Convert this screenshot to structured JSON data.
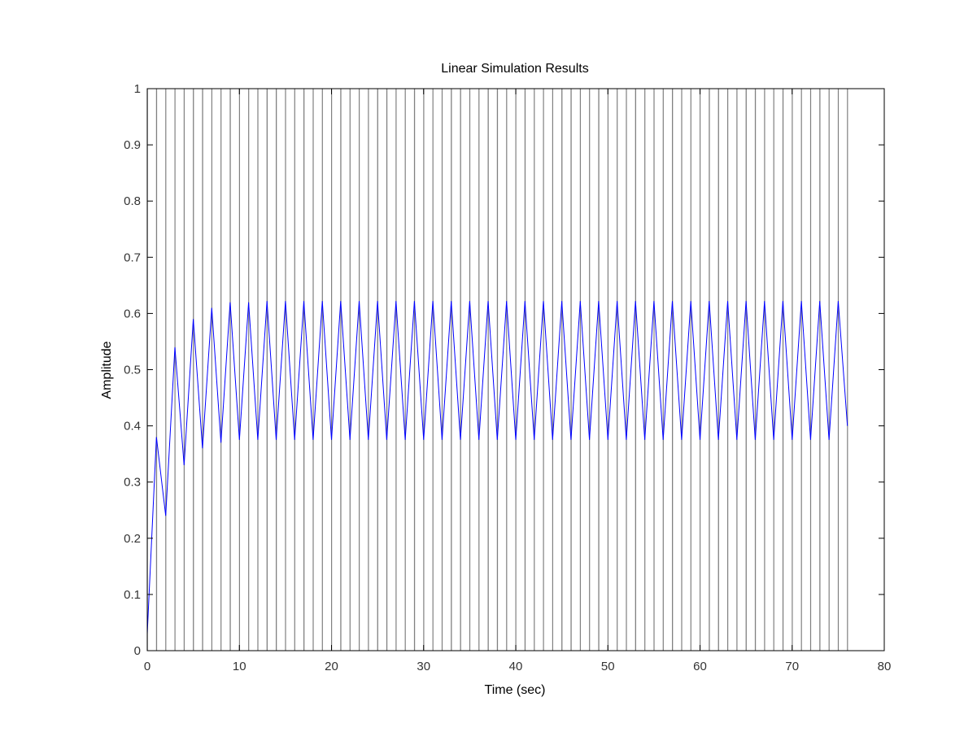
{
  "chart_data": {
    "type": "line",
    "title": "Linear Simulation Results",
    "xlabel": "Time (sec)",
    "ylabel": "Amplitude",
    "xlim": [
      0,
      80
    ],
    "ylim": [
      0,
      1
    ],
    "xticks": [
      "0",
      "10",
      "20",
      "30",
      "40",
      "50",
      "60",
      "70",
      "80"
    ],
    "yticks": [
      "0",
      "0.1",
      "0.2",
      "0.3",
      "0.4",
      "0.5",
      "0.6",
      "0.7",
      "0.8",
      "0.9",
      "1"
    ],
    "grid": false,
    "input_signal": {
      "description_values": "square pulse train, amplitude 0 to 1",
      "period": 1,
      "duty_high": 0.02,
      "t_end": 76,
      "color": "#808080"
    },
    "series": [
      {
        "color": "#0000ff",
        "x": [
          0,
          1,
          2,
          3,
          4,
          5,
          6,
          7,
          8,
          9,
          10,
          11,
          12,
          13,
          14,
          15,
          16,
          17,
          18,
          19,
          20,
          21,
          22,
          23,
          24,
          25,
          26,
          27,
          28,
          29,
          30,
          31,
          32,
          33,
          34,
          35,
          36,
          37,
          38,
          39,
          40,
          41,
          42,
          43,
          44,
          45,
          46,
          47,
          48,
          49,
          50,
          51,
          52,
          53,
          54,
          55,
          56,
          57,
          58,
          59,
          60,
          61,
          62,
          63,
          64,
          65,
          66,
          67,
          68,
          69,
          70,
          71,
          72,
          73,
          74,
          75,
          76
        ],
        "y": [
          0.03,
          0.38,
          0.24,
          0.54,
          0.33,
          0.59,
          0.36,
          0.61,
          0.37,
          0.62,
          0.375,
          0.62,
          0.375,
          0.622,
          0.375,
          0.622,
          0.375,
          0.622,
          0.375,
          0.622,
          0.375,
          0.622,
          0.375,
          0.622,
          0.375,
          0.622,
          0.375,
          0.622,
          0.375,
          0.622,
          0.375,
          0.622,
          0.375,
          0.622,
          0.375,
          0.622,
          0.375,
          0.622,
          0.375,
          0.622,
          0.375,
          0.622,
          0.375,
          0.622,
          0.375,
          0.622,
          0.375,
          0.622,
          0.375,
          0.622,
          0.375,
          0.622,
          0.375,
          0.622,
          0.375,
          0.622,
          0.375,
          0.622,
          0.375,
          0.622,
          0.375,
          0.622,
          0.375,
          0.622,
          0.375,
          0.622,
          0.375,
          0.622,
          0.375,
          0.622,
          0.375,
          0.622,
          0.375,
          0.622,
          0.375,
          0.622,
          0.4
        ]
      }
    ]
  }
}
